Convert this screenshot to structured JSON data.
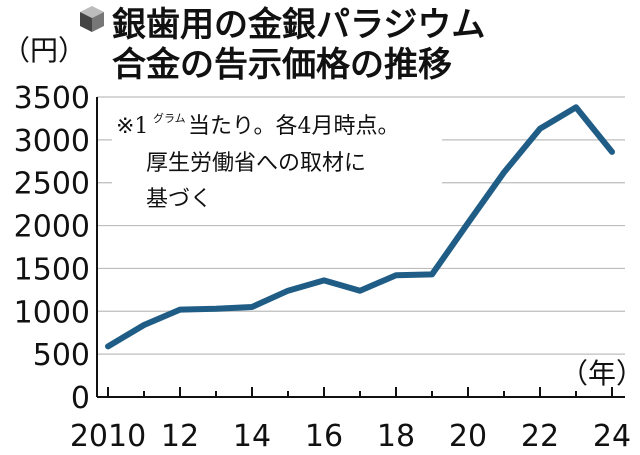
{
  "chart_data": {
    "type": "line",
    "title_lines": [
      "銀歯用の金銀パラジウム",
      "合金の告示価格の推移"
    ],
    "ylabel": "（円）",
    "xlabel": "（年）",
    "ylim": [
      0,
      3500
    ],
    "xlim": [
      2010,
      2024
    ],
    "yticks": [
      0,
      500,
      1000,
      1500,
      2000,
      2500,
      3000,
      3500
    ],
    "xtick_labels": [
      {
        "value": 2010,
        "label": "2010"
      },
      {
        "value": 2012,
        "label": "12"
      },
      {
        "value": 2014,
        "label": "14"
      },
      {
        "value": 2016,
        "label": "16"
      },
      {
        "value": 2018,
        "label": "18"
      },
      {
        "value": 2020,
        "label": "20"
      },
      {
        "value": 2022,
        "label": "22"
      },
      {
        "value": 2024,
        "label": "24"
      }
    ],
    "grid": true,
    "line_color": "#1f5d86",
    "x": [
      2010,
      2011,
      2012,
      2013,
      2014,
      2015,
      2016,
      2017,
      2018,
      2019,
      2020,
      2021,
      2022,
      2023,
      2024
    ],
    "values": [
      590,
      840,
      1020,
      1030,
      1050,
      1240,
      1360,
      1240,
      1420,
      1430,
      2030,
      2620,
      3130,
      3380,
      2860
    ],
    "annotation": {
      "prefix": "※1",
      "super": "グラム",
      "line1_rest": "当たり。各4月時点。",
      "line2": "厚生労働省への取材に",
      "line3": "基づく"
    }
  }
}
